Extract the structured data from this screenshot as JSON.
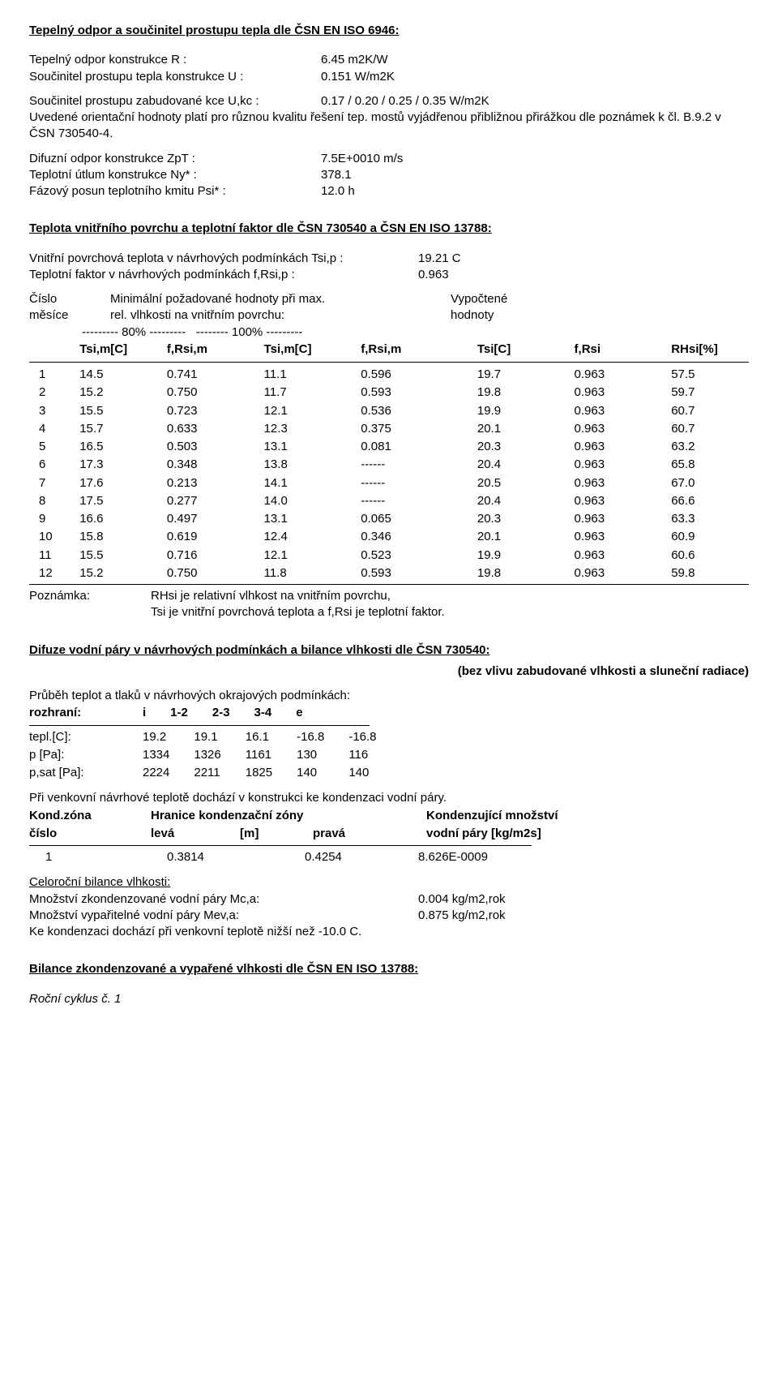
{
  "s1": {
    "title": "Tepelný odpor a součinitel prostupu tepla dle ČSN EN ISO 6946:",
    "r_label": "Tepelný odpor konstrukce R :",
    "r_val": "6.45 m2K/W",
    "u_label": "Součinitel prostupu tepla konstrukce U :",
    "u_val": "0.151 W/m2K",
    "ukc_label": "Součinitel prostupu zabudované kce U,kc :",
    "ukc_val": "0.17 / 0.20 / 0.25 / 0.35 W/m2K",
    "note1": "Uvedené orientační hodnoty platí pro různou kvalitu řešení tep. mostů vyjádřenou přibližnou přirážkou dle poznámek k čl. B.9.2 v ČSN 730540-4.",
    "zpt_label": "Difuzní odpor konstrukce ZpT :",
    "zpt_val": "7.5E+0010 m/s",
    "ny_label": "Teplotní útlum konstrukce Ny* :",
    "ny_val": "378.1",
    "psi_label": "Fázový posun teplotního kmitu Psi* :",
    "psi_val": "12.0 h"
  },
  "s2": {
    "title": "Teplota vnitřního povrchu a teplotní faktor dle ČSN 730540 a ČSN EN ISO 13788:",
    "tsip_label": "Vnitřní povrchová teplota v návrhových podmínkách Tsi,p :",
    "tsip_val": "19.21 C",
    "frsip_label": "Teplotní faktor v návrhových podmínkách f,Rsi,p :",
    "frsip_val": "0.963",
    "col_cislo": "Číslo",
    "col_min": "Minimální požadované hodnoty při max.",
    "col_vyp": "Vypočtené",
    "col_mesice": "měsíce",
    "col_rel": "rel. vlhkosti na vnitřním povrchu:",
    "col_hod": "hodnoty",
    "pct_line": "--------- 80% ---------   -------- 100% ---------",
    "h_tsim1": "Tsi,m[C]",
    "h_frsim1": "f,Rsi,m",
    "h_tsim2": "Tsi,m[C]",
    "h_frsim2": "f,Rsi,m",
    "h_tsi": "Tsi[C]",
    "h_frsi": "f,Rsi",
    "h_rhsi": "RHsi[%]",
    "rows": [
      {
        "m": "1",
        "a": "14.5",
        "b": "0.741",
        "c": "11.1",
        "d": "0.596",
        "e": "19.7",
        "f": "0.963",
        "g": "57.5"
      },
      {
        "m": "2",
        "a": "15.2",
        "b": "0.750",
        "c": "11.7",
        "d": "0.593",
        "e": "19.8",
        "f": "0.963",
        "g": "59.7"
      },
      {
        "m": "3",
        "a": "15.5",
        "b": "0.723",
        "c": "12.1",
        "d": "0.536",
        "e": "19.9",
        "f": "0.963",
        "g": "60.7"
      },
      {
        "m": "4",
        "a": "15.7",
        "b": "0.633",
        "c": "12.3",
        "d": "0.375",
        "e": "20.1",
        "f": "0.963",
        "g": "60.7"
      },
      {
        "m": "5",
        "a": "16.5",
        "b": "0.503",
        "c": "13.1",
        "d": "0.081",
        "e": "20.3",
        "f": "0.963",
        "g": "63.2"
      },
      {
        "m": "6",
        "a": "17.3",
        "b": "0.348",
        "c": "13.8",
        "d": "------",
        "e": "20.4",
        "f": "0.963",
        "g": "65.8"
      },
      {
        "m": "7",
        "a": "17.6",
        "b": "0.213",
        "c": "14.1",
        "d": "------",
        "e": "20.5",
        "f": "0.963",
        "g": "67.0"
      },
      {
        "m": "8",
        "a": "17.5",
        "b": "0.277",
        "c": "14.0",
        "d": "------",
        "e": "20.4",
        "f": "0.963",
        "g": "66.6"
      },
      {
        "m": "9",
        "a": "16.6",
        "b": "0.497",
        "c": "13.1",
        "d": "0.065",
        "e": "20.3",
        "f": "0.963",
        "g": "63.3"
      },
      {
        "m": "10",
        "a": "15.8",
        "b": "0.619",
        "c": "12.4",
        "d": "0.346",
        "e": "20.1",
        "f": "0.963",
        "g": "60.9"
      },
      {
        "m": "11",
        "a": "15.5",
        "b": "0.716",
        "c": "12.1",
        "d": "0.523",
        "e": "19.9",
        "f": "0.963",
        "g": "60.6"
      },
      {
        "m": "12",
        "a": "15.2",
        "b": "0.750",
        "c": "11.8",
        "d": "0.593",
        "e": "19.8",
        "f": "0.963",
        "g": "59.8"
      }
    ],
    "poz_label": "Poznámka:",
    "poz1": "RHsi je relativní vlhkost na vnitřním povrchu,",
    "poz2": "Tsi je vnitřní povrchová teplota a f,Rsi je teplotní faktor."
  },
  "s3": {
    "title": "Difuze vodní páry v návrhových podmínkách a bilance vlhkosti dle ČSN 730540:",
    "subtitle": "(bez vlivu zabudované vlhkosti a sluneční radiace)",
    "prubeh": "Průběh teplot a tlaků v návrhových okrajových podmínkách:",
    "bh_roz": "rozhraní:",
    "bh_i": "i",
    "bh_12": "1-2",
    "bh_23": "2-3",
    "bh_34": "3-4",
    "bh_e": "e",
    "bt_lbl": "tepl.[C]:",
    "bt_i": "19.2",
    "bt_12": "19.1",
    "bt_23": "16.1",
    "bt_34": "-16.8",
    "bt_e": "-16.8",
    "bp_lbl": "p [Pa]:",
    "bp_i": "1334",
    "bp_12": "1326",
    "bp_23": "1161",
    "bp_34": "130",
    "bp_e": "116",
    "bs_lbl": "p,sat [Pa]:",
    "bs_i": "2224",
    "bs_12": "2211",
    "bs_23": "1825",
    "bs_34": "140",
    "bs_e": "140",
    "cond_text": "Při venkovní návrhové teplotě dochází v konstrukci ke kondenzaci vodní páry.",
    "kh_zona": "Kond.zóna",
    "kh_hran": "Hranice kondenzační zóny",
    "kh_mnoz": "Kondenzující množství",
    "kh_cislo": "číslo",
    "kh_leva": "levá",
    "kh_m": "[m]",
    "kh_prava": "pravá",
    "kh_vp": "vodní páry [kg/m2s]",
    "kr_n": "1",
    "kr_l": "0.3814",
    "kr_p": "0.4254",
    "kr_v": "8.626E-0009",
    "cel_title": "Celoroční bilance vlhkosti:",
    "mc_label": "Množství zkondenzované vodní páry Mc,a:",
    "mc_val": "0.004 kg/m2,rok",
    "mev_label": "Množství vypařitelné vodní páry Mev,a:",
    "mev_val": "0.875 kg/m2,rok",
    "ke_kond": "Ke kondenzaci dochází při venkovní teplotě nižší než -10.0 C."
  },
  "s4": {
    "title": "Bilance zkondenzované a vypařené vlhkosti dle ČSN EN ISO 13788:",
    "cyklus": "Roční cyklus č.   1"
  }
}
